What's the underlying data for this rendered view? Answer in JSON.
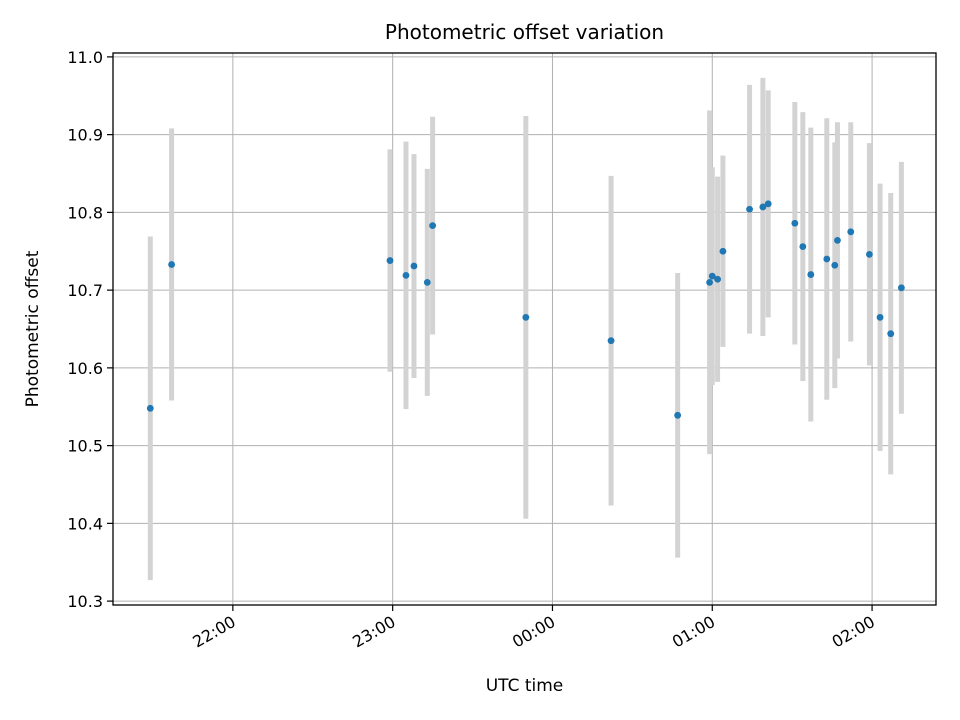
{
  "chart_data": {
    "type": "scatter",
    "title": "Photometric offset variation",
    "xlabel": "UTC time",
    "ylabel": "Photometric offset",
    "grid": true,
    "x_axis_type": "time",
    "xlim": [
      "21:15",
      "02:24"
    ],
    "ylim": [
      10.295,
      11.005
    ],
    "x_ticks": [
      "22:00",
      "23:00",
      "00:00",
      "01:00",
      "02:00"
    ],
    "y_ticks": [
      "10.3",
      "10.4",
      "10.5",
      "10.6",
      "10.7",
      "10.8",
      "10.9",
      "11.0"
    ],
    "colors": {
      "point": "#1f77b4",
      "errorbar": "#d3d3d3",
      "grid": "#b0b0b0"
    },
    "points": [
      {
        "t": "21:29",
        "y": 10.548,
        "yerr": 0.221
      },
      {
        "t": "21:37",
        "y": 10.733,
        "yerr": 0.175
      },
      {
        "t": "22:59",
        "y": 10.738,
        "yerr": 0.143
      },
      {
        "t": "23:05",
        "y": 10.719,
        "yerr": 0.172
      },
      {
        "t": "23:08",
        "y": 10.731,
        "yerr": 0.144
      },
      {
        "t": "23:13",
        "y": 10.71,
        "yerr": 0.146
      },
      {
        "t": "23:15",
        "y": 10.783,
        "yerr": 0.14
      },
      {
        "t": "23:50",
        "y": 10.665,
        "yerr": 0.259
      },
      {
        "t": "00:22",
        "y": 10.635,
        "yerr": 0.212
      },
      {
        "t": "00:47",
        "y": 10.539,
        "yerr": 0.183
      },
      {
        "t": "00:59",
        "y": 10.71,
        "yerr": 0.221
      },
      {
        "t": "01:00",
        "y": 10.718,
        "yerr": 0.14
      },
      {
        "t": "01:02",
        "y": 10.714,
        "yerr": 0.132
      },
      {
        "t": "01:04",
        "y": 10.75,
        "yerr": 0.123
      },
      {
        "t": "01:14",
        "y": 10.804,
        "yerr": 0.16
      },
      {
        "t": "01:19",
        "y": 10.807,
        "yerr": 0.166
      },
      {
        "t": "01:21",
        "y": 10.811,
        "yerr": 0.146
      },
      {
        "t": "01:31",
        "y": 10.786,
        "yerr": 0.156
      },
      {
        "t": "01:34",
        "y": 10.756,
        "yerr": 0.173
      },
      {
        "t": "01:37",
        "y": 10.72,
        "yerr": 0.189
      },
      {
        "t": "01:43",
        "y": 10.74,
        "yerr": 0.181
      },
      {
        "t": "01:46",
        "y": 10.732,
        "yerr": 0.158
      },
      {
        "t": "01:47",
        "y": 10.764,
        "yerr": 0.152
      },
      {
        "t": "01:52",
        "y": 10.775,
        "yerr": 0.141
      },
      {
        "t": "01:59",
        "y": 10.746,
        "yerr": 0.143
      },
      {
        "t": "02:03",
        "y": 10.665,
        "yerr": 0.172
      },
      {
        "t": "02:07",
        "y": 10.644,
        "yerr": 0.181
      },
      {
        "t": "02:11",
        "y": 10.703,
        "yerr": 0.162
      }
    ]
  }
}
